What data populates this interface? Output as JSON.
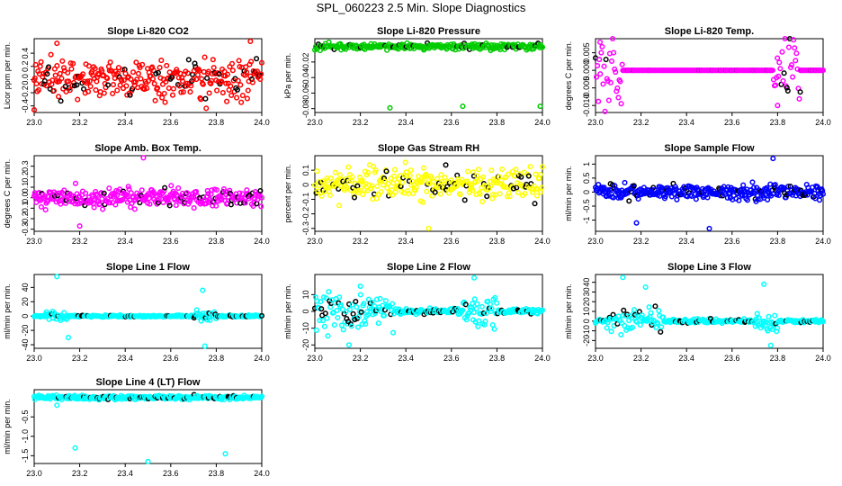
{
  "figure": {
    "title": "SPL_060223  2.5 Min. Slope Diagnostics",
    "xaxis": {
      "ticks": [
        23.0,
        23.2,
        23.4,
        23.6,
        23.8,
        24.0
      ],
      "tick_labels": [
        "23.0",
        "23.2",
        "23.4",
        "23.6",
        "23.8",
        "24.0"
      ]
    },
    "colors": {
      "highlight": "#000000"
    }
  },
  "chart_data": [
    {
      "id": "co2",
      "type": "scatter",
      "title": "Slope Li-820 CO2",
      "ylabel": "Licor ppm per min.",
      "color": "#ff0000",
      "xlim": [
        23.0,
        24.0
      ],
      "ylim": [
        -0.5,
        0.62
      ],
      "yticks": [
        -0.4,
        -0.2,
        0.0,
        0.2,
        0.4
      ],
      "ytick_labels": [
        "-0.4",
        "-0.2",
        "0.0",
        "0.2",
        "0.4"
      ],
      "pattern": "noise",
      "center": 0.0,
      "spread": 0.28,
      "n": 300,
      "outliers": [
        [
          23.1,
          0.55
        ],
        [
          23.95,
          0.58
        ],
        [
          23.0,
          -0.46
        ]
      ],
      "seed": 11
    },
    {
      "id": "pressure",
      "type": "scatter",
      "title": "Slope Li-820 Pressure",
      "ylabel": "kPa per min.",
      "color": "#00cc00",
      "xlim": [
        23.0,
        24.0
      ],
      "ylim": [
        -0.085,
        0.01
      ],
      "yticks": [
        -0.08,
        -0.06,
        -0.04,
        -0.02
      ],
      "ytick_labels": [
        "-0.08",
        "-0.06",
        "-0.04",
        "-0.02"
      ],
      "pattern": "noise",
      "center": 0.0,
      "spread": 0.004,
      "n": 260,
      "outliers": [
        [
          23.33,
          -0.079
        ],
        [
          23.65,
          -0.077
        ],
        [
          23.99,
          -0.077
        ]
      ],
      "seed": 22
    },
    {
      "id": "temp",
      "type": "scatter",
      "title": "Slope Li-820 Temp.",
      "ylabel": "degrees C per min.",
      "color": "#ff00ff",
      "xlim": [
        23.0,
        24.0
      ],
      "ylim": [
        -0.012,
        0.009
      ],
      "yticks": [
        -0.01,
        -0.005,
        0.0,
        0.005
      ],
      "ytick_labels": [
        "-0.010",
        "-0.005",
        "0.000",
        "0.005"
      ],
      "pattern": "burst",
      "center": 0.0,
      "spread": 0.003,
      "n": 240,
      "outliers": [
        [
          23.02,
          0.008
        ],
        [
          23.8,
          -0.01
        ]
      ],
      "seed": 33,
      "bursts": [
        [
          23.0,
          23.12
        ],
        [
          23.78,
          23.9
        ]
      ]
    },
    {
      "id": "boxtemp",
      "type": "scatter",
      "title": "Slope Amb. Box Temp.",
      "ylabel": "degrees C per min.",
      "color": "#ff00ff",
      "xlim": [
        23.0,
        24.0
      ],
      "ylim": [
        -0.32,
        0.4
      ],
      "yticks": [
        -0.3,
        -0.2,
        -0.1,
        0.0,
        0.1,
        0.2,
        0.3
      ],
      "ytick_labels": [
        "-0.3",
        "-0.2",
        "-0.1",
        "0.0",
        "0.1",
        "0.2",
        "0.3"
      ],
      "pattern": "noise",
      "center": 0.0,
      "spread": 0.09,
      "n": 320,
      "outliers": [
        [
          23.48,
          0.38
        ],
        [
          23.2,
          -0.27
        ]
      ],
      "seed": 44
    },
    {
      "id": "rh",
      "type": "scatter",
      "title": "Slope Gas Stream RH",
      "ylabel": "percent per min.",
      "color": "#ffff00",
      "xlim": [
        23.0,
        24.0
      ],
      "ylim": [
        -0.32,
        0.2
      ],
      "yticks": [
        -0.3,
        -0.2,
        -0.1,
        0.0,
        0.1
      ],
      "ytick_labels": [
        "-0.3",
        "-0.2",
        "-0.1",
        "0",
        "0.1"
      ],
      "pattern": "noise",
      "center": 0.0,
      "spread": 0.11,
      "n": 300,
      "outliers": [
        [
          23.5,
          -0.3
        ]
      ],
      "seed": 55
    },
    {
      "id": "sampleflow",
      "type": "scatter",
      "title": "Slope Sample Flow",
      "ylabel": "ml/min per min.",
      "color": "#0000ff",
      "xlim": [
        23.0,
        24.0
      ],
      "ylim": [
        -1.4,
        1.3
      ],
      "yticks": [
        -1.0,
        -0.5,
        0.0,
        0.5,
        1.0
      ],
      "ytick_labels": [
        "-1",
        "-0.5",
        "0",
        "0.5",
        "1"
      ],
      "pattern": "noise",
      "center": 0.0,
      "spread": 0.28,
      "n": 320,
      "outliers": [
        [
          23.78,
          1.2
        ],
        [
          23.5,
          -1.3
        ],
        [
          23.18,
          -1.1
        ]
      ],
      "seed": 66
    },
    {
      "id": "line1",
      "type": "scatter",
      "title": "Slope Line 1 Flow",
      "ylabel": "ml/min per min.",
      "color": "#00ffff",
      "xlim": [
        23.0,
        24.0
      ],
      "ylim": [
        -45,
        58
      ],
      "yticks": [
        -40,
        -20,
        0,
        20,
        40
      ],
      "ytick_labels": [
        "-40",
        "-20",
        "0",
        "20",
        "40"
      ],
      "pattern": "burst",
      "center": 0.0,
      "spread": 2.5,
      "n": 260,
      "outliers": [
        [
          23.1,
          55
        ],
        [
          23.74,
          36
        ],
        [
          23.75,
          -42
        ],
        [
          23.15,
          -30
        ]
      ],
      "seed": 77,
      "bursts": [
        [
          23.05,
          23.15
        ],
        [
          23.7,
          23.8
        ]
      ]
    },
    {
      "id": "line2",
      "type": "scatter",
      "title": "Slope Line 2 Flow",
      "ylabel": "ml/min per min.",
      "color": "#00ffff",
      "xlim": [
        23.0,
        24.0
      ],
      "ylim": [
        -22,
        22
      ],
      "yticks": [
        -20,
        -10,
        0,
        10
      ],
      "ytick_labels": [
        "-20",
        "-10",
        "0",
        "10"
      ],
      "pattern": "burst",
      "center": 0.0,
      "spread": 3.5,
      "n": 280,
      "outliers": [
        [
          23.2,
          15
        ],
        [
          23.7,
          20
        ],
        [
          23.15,
          -20
        ]
      ],
      "seed": 88,
      "bursts": [
        [
          23.0,
          23.35
        ],
        [
          23.65,
          23.8
        ]
      ]
    },
    {
      "id": "line3",
      "type": "scatter",
      "title": "Slope Line 3 Flow",
      "ylabel": "ml/min per min.",
      "color": "#00ffff",
      "xlim": [
        23.0,
        24.0
      ],
      "ylim": [
        -28,
        48
      ],
      "yticks": [
        -20,
        -10,
        0,
        10,
        20,
        30,
        40
      ],
      "ytick_labels": [
        "-20",
        "-10",
        "0",
        "10",
        "20",
        "30",
        "40"
      ],
      "pattern": "burst",
      "center": 0.0,
      "spread": 4,
      "n": 260,
      "outliers": [
        [
          23.12,
          45
        ],
        [
          23.22,
          35
        ],
        [
          23.74,
          38
        ],
        [
          23.77,
          -25
        ]
      ],
      "seed": 99,
      "bursts": [
        [
          23.05,
          23.3
        ],
        [
          23.7,
          23.8
        ]
      ]
    },
    {
      "id": "line4",
      "type": "scatter",
      "title": "Slope Line 4 (LT) Flow",
      "ylabel": "ml/min per min.",
      "color": "#00ffff",
      "xlim": [
        23.0,
        24.0
      ],
      "ylim": [
        -1.7,
        0.2
      ],
      "yticks": [
        -1.5,
        -1.0,
        -0.5
      ],
      "ytick_labels": [
        "-1.5",
        "-1.0",
        "-0.5"
      ],
      "pattern": "noise",
      "center": 0.0,
      "spread": 0.05,
      "n": 300,
      "outliers": [
        [
          23.18,
          -1.3
        ],
        [
          23.84,
          -1.45
        ],
        [
          23.5,
          -1.65
        ],
        [
          23.1,
          -0.2
        ]
      ],
      "seed": 111
    }
  ]
}
